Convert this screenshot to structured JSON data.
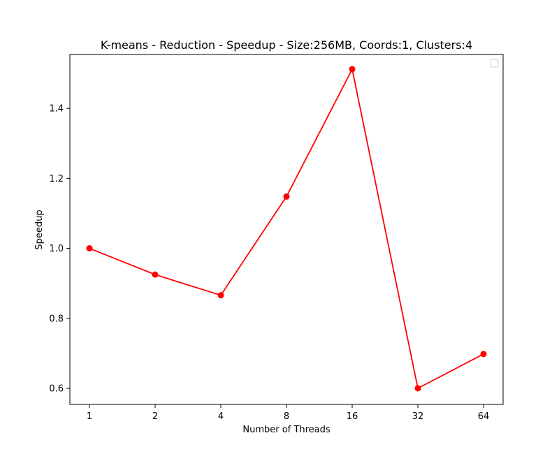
{
  "chart_data": {
    "type": "line",
    "title": "K-means - Reduction - Speedup - Size:256MB, Coords:1, Clusters:4",
    "xlabel": "Number of Threads",
    "ylabel": "Speedup",
    "categories": [
      "1",
      "2",
      "4",
      "8",
      "16",
      "32",
      "64"
    ],
    "series": [
      {
        "values": [
          1.0,
          0.925,
          0.866,
          1.148,
          1.512,
          0.6,
          0.698
        ],
        "color": "#ff0000"
      }
    ],
    "ylim": [
      0.554,
      1.554
    ],
    "yticks": [
      0.6,
      0.8,
      1.0,
      1.2,
      1.4
    ],
    "ytick_labels": [
      "0.6",
      "0.8",
      "1.0",
      "1.2",
      "1.4"
    ],
    "grid": false,
    "legend": "top-right, empty"
  }
}
